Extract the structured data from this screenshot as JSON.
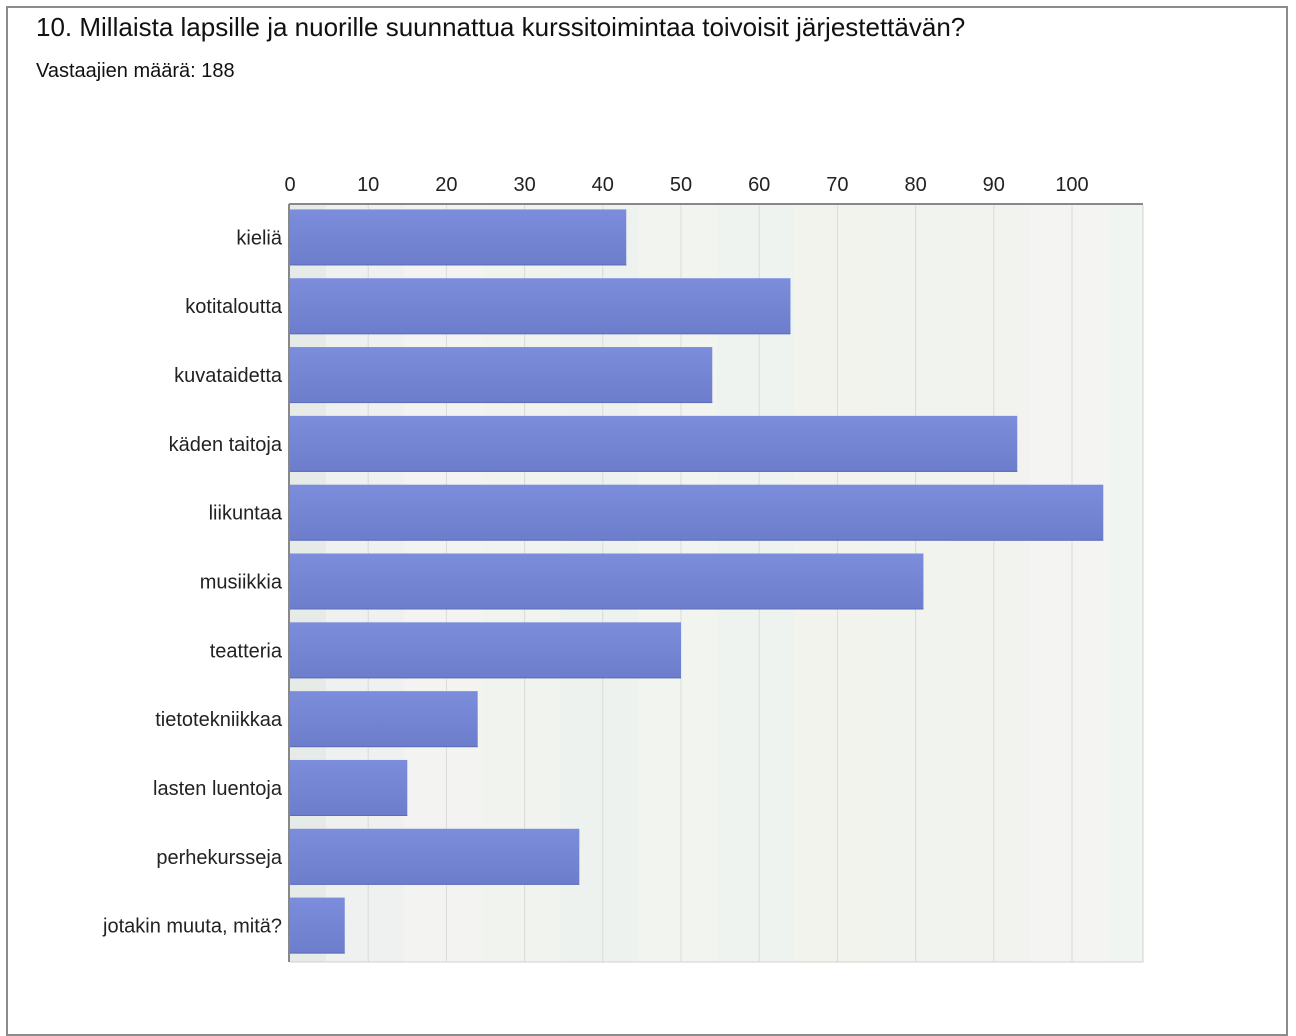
{
  "question": {
    "title": "10. Millaista lapsille ja nuorille suunnattua kurssitoimintaa toivoisit järjestettävän?",
    "respondents_label": "Vastaajien määrä: 188"
  },
  "chart_data": {
    "type": "bar",
    "orientation": "horizontal",
    "title": "",
    "xlabel": "",
    "ylabel": "",
    "xlim": [
      0,
      110
    ],
    "x_ticks": [
      0,
      10,
      20,
      30,
      40,
      50,
      60,
      70,
      80,
      90,
      100
    ],
    "tick_labels": [
      "0",
      "10",
      "20",
      "30",
      "40",
      "50",
      "60",
      "70",
      "80",
      "90",
      "100"
    ],
    "categories": [
      "kieliä",
      "kotitaloutta",
      "kuvataidetta",
      "käden taitoja",
      "liikuntaa",
      "musiikkia",
      "teatteria",
      "tietotekniikkaa",
      "lasten luentoja",
      "perhekursseja",
      "jotakin muuta, mitä?"
    ],
    "values": [
      43,
      64,
      54,
      93,
      104,
      81,
      50,
      24,
      15,
      37,
      7
    ],
    "bar_color": "#7585d6",
    "grid": true
  }
}
